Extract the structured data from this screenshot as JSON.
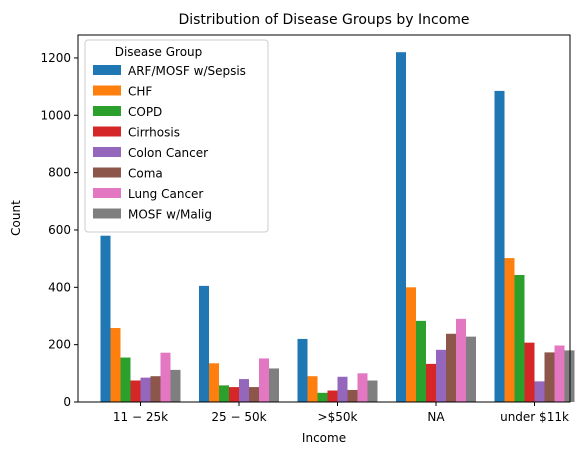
{
  "chart_data": {
    "type": "bar",
    "title": "Distribution of Disease Groups by Income",
    "xlabel": "Income",
    "ylabel": "Count",
    "categories": [
      "$11-$25k",
      "$25-$50k",
      ">$50k",
      "NA",
      "under $11k"
    ],
    "category_labels": [
      "11 − 25k",
      "25 − 50k",
      ">$50k",
      "NA",
      "under $11k"
    ],
    "category_label_prefix": "$",
    "ylim": [
      0,
      1280
    ],
    "yticks": [
      0,
      200,
      400,
      600,
      800,
      1000,
      1200
    ],
    "grid": false,
    "legend": {
      "title": "Disease Group",
      "position": "top-left"
    },
    "series": [
      {
        "name": "ARF/MOSF w/Sepsis",
        "color": "#1f77b4",
        "values": [
          580,
          405,
          220,
          1220,
          1085
        ]
      },
      {
        "name": "CHF",
        "color": "#ff7f0e",
        "values": [
          258,
          135,
          90,
          400,
          502
        ]
      },
      {
        "name": "COPD",
        "color": "#2ca02c",
        "values": [
          155,
          58,
          32,
          283,
          443
        ]
      },
      {
        "name": "Cirrhosis",
        "color": "#d62728",
        "values": [
          75,
          52,
          40,
          133,
          207
        ]
      },
      {
        "name": "Colon Cancer",
        "color": "#9467bd",
        "values": [
          85,
          80,
          88,
          182,
          72
        ]
      },
      {
        "name": "Coma",
        "color": "#8c564b",
        "values": [
          90,
          52,
          42,
          238,
          173
        ]
      },
      {
        "name": "Lung Cancer",
        "color": "#e377c2",
        "values": [
          172,
          152,
          100,
          290,
          197
        ]
      },
      {
        "name": "MOSF w/Malig",
        "color": "#7f7f7f",
        "values": [
          112,
          117,
          75,
          228,
          180
        ]
      }
    ]
  }
}
